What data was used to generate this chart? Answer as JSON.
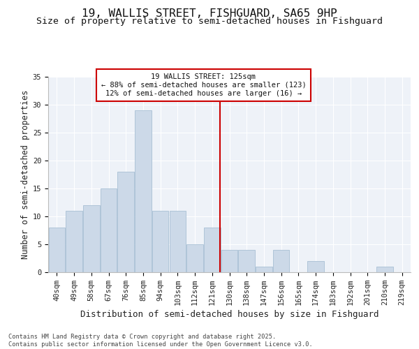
{
  "title_line1": "19, WALLIS STREET, FISHGUARD, SA65 9HP",
  "title_line2": "Size of property relative to semi-detached houses in Fishguard",
  "xlabel": "Distribution of semi-detached houses by size in Fishguard",
  "ylabel": "Number of semi-detached properties",
  "categories": [
    "40sqm",
    "49sqm",
    "58sqm",
    "67sqm",
    "76sqm",
    "85sqm",
    "94sqm",
    "103sqm",
    "112sqm",
    "121sqm",
    "130sqm",
    "138sqm",
    "147sqm",
    "156sqm",
    "165sqm",
    "174sqm",
    "183sqm",
    "192sqm",
    "201sqm",
    "210sqm",
    "219sqm"
  ],
  "values": [
    8,
    11,
    12,
    15,
    18,
    29,
    11,
    11,
    5,
    8,
    4,
    4,
    1,
    4,
    0,
    2,
    0,
    0,
    0,
    1,
    0
  ],
  "bar_color": "#ccd9e8",
  "bar_edge_color": "#a8bfd4",
  "vline_color": "#cc0000",
  "annotation_box_color": "#cc0000",
  "annotation_text": "19 WALLIS STREET: 125sqm\n← 88% of semi-detached houses are smaller (123)\n12% of semi-detached houses are larger (16) →",
  "ylim": [
    0,
    35
  ],
  "yticks": [
    0,
    5,
    10,
    15,
    20,
    25,
    30,
    35
  ],
  "background_color": "#eef2f8",
  "grid_color": "#ffffff",
  "footer_text": "Contains HM Land Registry data © Crown copyright and database right 2025.\nContains public sector information licensed under the Open Government Licence v3.0.",
  "title_fontsize": 11.5,
  "subtitle_fontsize": 9.5,
  "ylabel_fontsize": 8.5,
  "xlabel_fontsize": 9,
  "tick_fontsize": 7.5,
  "annotation_fontsize": 7.5,
  "footer_fontsize": 6.2
}
